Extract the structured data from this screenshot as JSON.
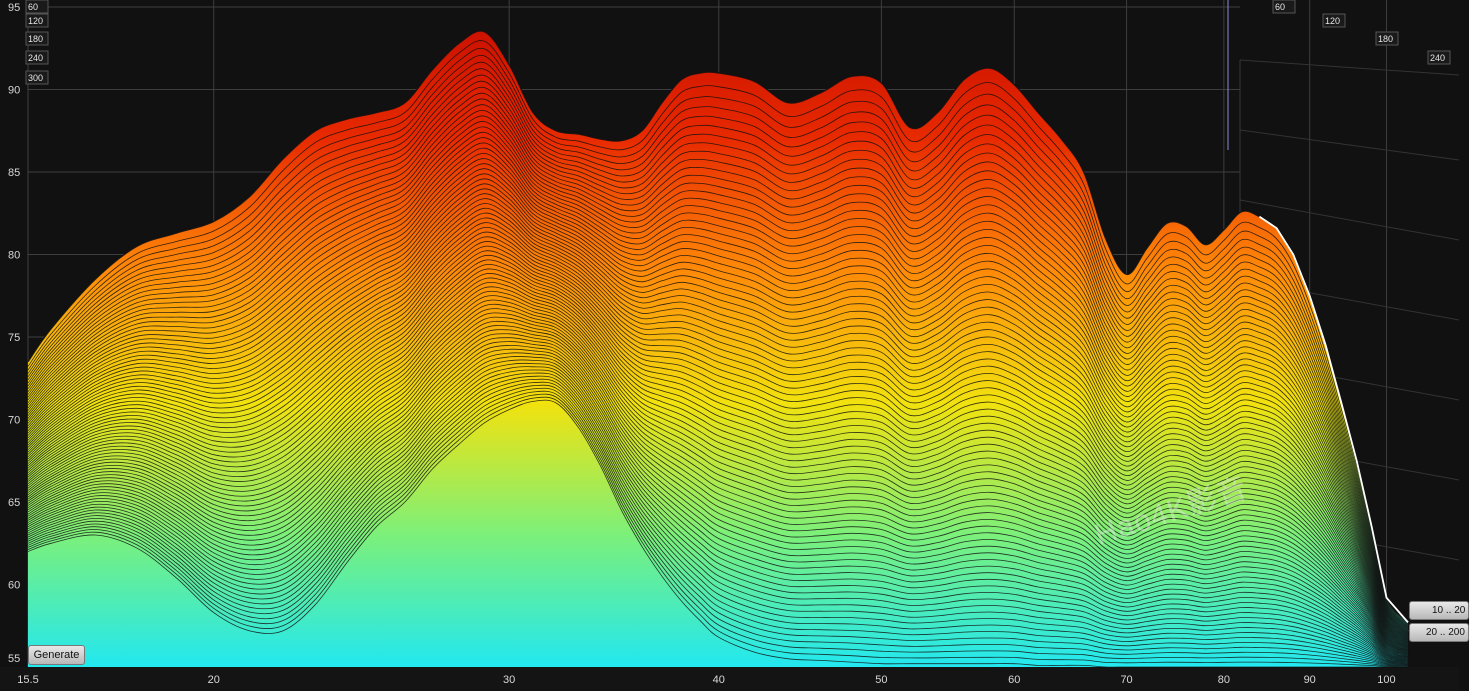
{
  "chart_data": {
    "type": "waterfall",
    "xlabel": "",
    "ylabel": "",
    "x_scale": "log",
    "xlim": [
      15.5,
      103
    ],
    "ylim": [
      55,
      95
    ],
    "x_ticks": [
      "15.5",
      "20",
      "30",
      "40",
      "50",
      "60",
      "70",
      "80",
      "90",
      "100"
    ],
    "y_ticks": [
      "95",
      "90",
      "85",
      "80",
      "75",
      "70",
      "65",
      "60",
      "55"
    ],
    "time_axis_left_labels": [
      "60",
      "120",
      "180",
      "240",
      "300"
    ],
    "time_axis_right_labels": [
      "60",
      "120",
      "180",
      "240"
    ],
    "slice_count": 80,
    "colormap": [
      "#22e8f0",
      "#7cf07a",
      "#f2e20e",
      "#ff8a08",
      "#e82a00",
      "#c60c00"
    ],
    "first_slice": {
      "x": [
        15.5,
        16,
        17,
        18,
        19,
        20,
        21,
        22,
        23,
        24,
        25,
        26,
        27,
        28,
        29,
        30,
        31,
        32,
        33,
        34,
        35,
        36,
        37,
        38,
        39,
        40,
        42,
        44,
        46,
        48,
        50,
        52,
        54,
        56,
        58,
        60,
        62,
        64,
        66,
        68,
        70,
        72,
        74,
        76,
        78,
        80,
        82,
        84,
        86,
        88,
        90,
        92,
        94,
        96,
        98,
        100,
        103
      ],
      "y": [
        73.5,
        75.5,
        78.5,
        80.5,
        81.3,
        82,
        83.5,
        85.8,
        87.5,
        88.2,
        88.6,
        89.2,
        91.2,
        92.8,
        93.5,
        91.5,
        88.6,
        87.5,
        87.3,
        87,
        86.9,
        87.5,
        89.2,
        90.6,
        91,
        91,
        90.5,
        89.2,
        89.8,
        90.8,
        90.4,
        87.7,
        88.6,
        90.6,
        91.3,
        90.3,
        88.6,
        87,
        85,
        81,
        78.8,
        80.4,
        81.9,
        81.7,
        80.6,
        81.5,
        82.6,
        82.3,
        81.6,
        80,
        77.5,
        74.5,
        71,
        67.5,
        63.5,
        59.2,
        57.7
      ]
    },
    "last_slice": {
      "x": [
        15.5,
        16,
        17,
        18,
        19,
        20,
        21,
        22,
        23,
        24,
        25,
        26,
        27,
        28,
        29,
        30,
        31,
        32,
        33,
        34,
        35,
        36,
        37,
        38,
        39,
        40,
        42,
        44,
        46,
        48,
        50,
        52,
        54,
        56,
        58,
        60,
        62,
        64,
        66,
        68,
        70,
        72,
        74,
        76,
        78,
        80,
        82,
        84,
        86,
        88,
        90,
        92,
        94,
        96,
        98,
        100,
        103
      ],
      "y": [
        62,
        62.5,
        63,
        62.2,
        60.4,
        58.3,
        57.2,
        57.2,
        58.8,
        61.3,
        63.5,
        65,
        67,
        68.5,
        69.8,
        70.6,
        71.1,
        71,
        69.5,
        67.2,
        64.5,
        62.3,
        60.5,
        59,
        57.8,
        56.8,
        55.9,
        55.5,
        55.4,
        55.3,
        55.2,
        55.2,
        55.2,
        55.2,
        55.2,
        55.2,
        55.1,
        55.1,
        55.1,
        55,
        55,
        55,
        55,
        55,
        55,
        55,
        55,
        55,
        55,
        55,
        55,
        55,
        55,
        55,
        55,
        55,
        55
      ]
    },
    "watermark": "Hao4K影音"
  },
  "controls": {
    "generate_label": "Generate",
    "range1_label": "10 .. 20",
    "range2_label": "20 .. 200"
  }
}
